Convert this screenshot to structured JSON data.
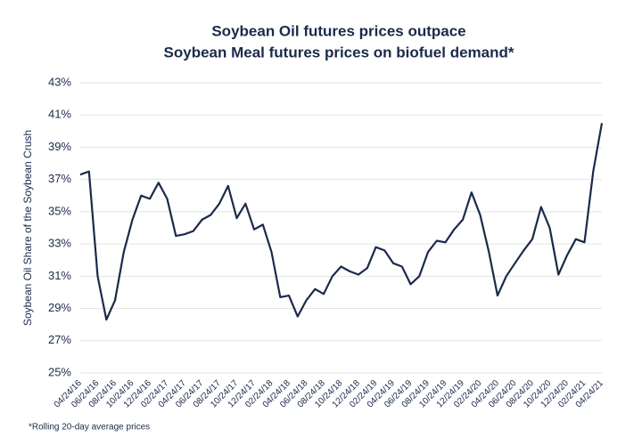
{
  "chart_data": {
    "type": "line",
    "title": [
      "Soybean Oil futures prices outpace",
      "Soybean Meal futures prices on biofuel demand*"
    ],
    "ylabel": "Soybean Oil Share of the Soybean Crush",
    "footnote": "*Rolling 20-day average prices",
    "categories": [
      "04/24/16",
      null,
      "06/24/16",
      null,
      "08/24/16",
      null,
      "10/24/16",
      null,
      "12/24/16",
      null,
      "02/24/17",
      null,
      "04/24/17",
      null,
      "06/24/17",
      null,
      "08/24/17",
      null,
      "10/24/17",
      null,
      "12/24/17",
      null,
      "02/24/18",
      null,
      "04/24/18",
      null,
      "06/24/18",
      null,
      "08/24/18",
      null,
      "10/24/18",
      null,
      "12/24/18",
      null,
      "02/24/19",
      null,
      "04/24/19",
      null,
      "06/24/19",
      null,
      "08/24/19",
      null,
      "10/24/19",
      null,
      "12/24/19",
      null,
      "02/24/20",
      null,
      "04/24/20",
      null,
      "06/24/20",
      null,
      "08/24/20",
      null,
      "10/24/20",
      null,
      "12/24/20",
      null,
      "02/24/21",
      null,
      "04/24/21"
    ],
    "series": [
      {
        "color": "#1b2a4a",
        "values": [
          37.3,
          37.5,
          31.0,
          28.3,
          29.5,
          32.5,
          34.5,
          36.0,
          35.8,
          36.8,
          35.8,
          33.5,
          33.6,
          33.8,
          34.5,
          34.8,
          35.5,
          36.6,
          34.6,
          35.5,
          33.9,
          34.2,
          32.5,
          29.7,
          29.8,
          28.5,
          29.5,
          30.2,
          29.9,
          31.0,
          31.6,
          31.3,
          31.1,
          31.5,
          32.8,
          32.6,
          31.8,
          31.6,
          30.5,
          31.0,
          32.5,
          33.2,
          33.1,
          33.9,
          34.5,
          36.2,
          34.8,
          32.5,
          29.8,
          31.0,
          31.8,
          32.6,
          33.3,
          35.3,
          34.0,
          31.1,
          32.3,
          33.3,
          33.1,
          37.5,
          40.5
        ]
      }
    ],
    "ylim": [
      25,
      43
    ],
    "yticks": [
      {
        "value": 25,
        "label": "25%"
      },
      {
        "value": 27,
        "label": "27%"
      },
      {
        "value": 29,
        "label": "29%"
      },
      {
        "value": 31,
        "label": "31%"
      },
      {
        "value": 33,
        "label": "33%"
      },
      {
        "value": 35,
        "label": "35%"
      },
      {
        "value": 37,
        "label": "37%"
      },
      {
        "value": 39,
        "label": "39%"
      },
      {
        "value": 41,
        "label": "41%"
      },
      {
        "value": 43,
        "label": "43%"
      }
    ],
    "grid": true
  }
}
